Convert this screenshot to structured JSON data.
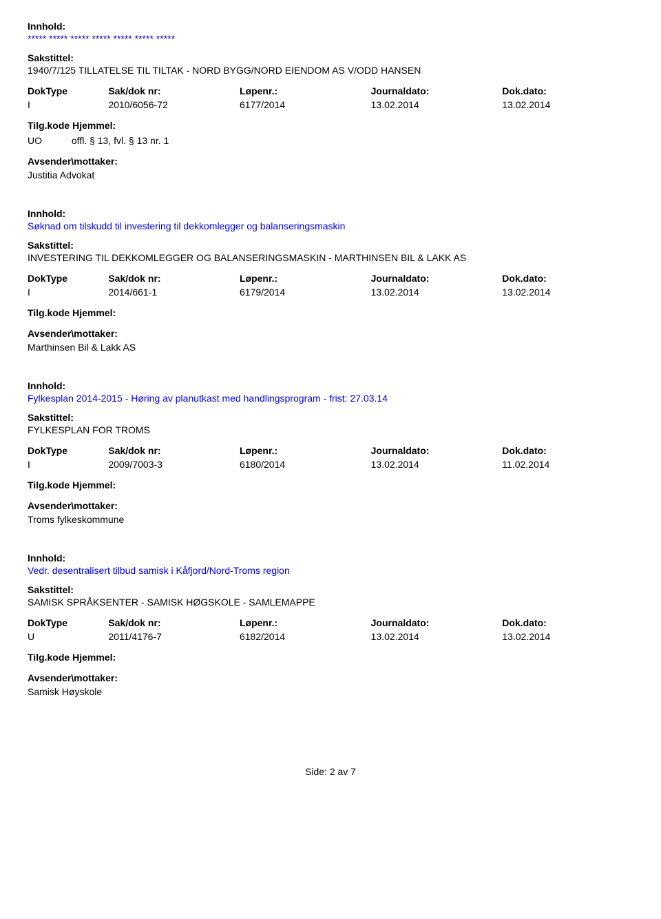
{
  "labels": {
    "innhold": "Innhold:",
    "sakstittel": "Sakstittel:",
    "doktype": "DokType",
    "saknr": "Sak/dok nr:",
    "lopenr": "Løpenr.:",
    "journaldato": "Journaldato:",
    "dokdato": "Dok.dato:",
    "tilgkode": "Tilg.kode",
    "hjemmel": "Hjemmel:",
    "avsender": "Avsender\\mottaker:"
  },
  "records": [
    {
      "innhold": "***** ***** ***** ***** ***** ***** *****",
      "sakstittel": "1940/7/125 TILLATELSE TIL TILTAK - NORD BYGG/NORD EIENDOM AS V/ODD HANSEN",
      "doktype": "I",
      "saknr": "2010/6056-72",
      "lopenr": "6177/2014",
      "journaldato": "13.02.2014",
      "dokdato": "13.02.2014",
      "tilgkode": "UO",
      "hjemmel": "offl. § 13, fvl. § 13 nr. 1",
      "avsender": "Justitia Advokat"
    },
    {
      "innhold": "Søknad om tilskudd til investering til dekkomlegger og balanseringsmaskin",
      "sakstittel": "INVESTERING TIL DEKKOMLEGGER OG BALANSERINGSMASKIN - MARTHINSEN BIL & LAKK AS",
      "doktype": "I",
      "saknr": "2014/661-1",
      "lopenr": "6179/2014",
      "journaldato": "13.02.2014",
      "dokdato": "13.02.2014",
      "tilgkode": "",
      "hjemmel": "",
      "avsender": "Marthinsen Bil & Lakk AS"
    },
    {
      "innhold": "Fylkesplan 2014-2015 - Høring av planutkast med handlingsprogram - frist: 27.03.14",
      "sakstittel": "FYLKESPLAN FOR TROMS",
      "doktype": "I",
      "saknr": "2009/7003-3",
      "lopenr": "6180/2014",
      "journaldato": "13.02.2014",
      "dokdato": "11.02.2014",
      "tilgkode": "",
      "hjemmel": "",
      "avsender": "Troms fylkeskommune"
    },
    {
      "innhold": "Vedr. desentralisert tilbud samisk i Kåfjord/Nord-Troms region",
      "sakstittel": "SAMISK SPRÅKSENTER - SAMISK HØGSKOLE - SAMLEMAPPE",
      "doktype": "U",
      "saknr": "2011/4176-7",
      "lopenr": "6182/2014",
      "journaldato": "13.02.2014",
      "dokdato": "13.02.2014",
      "tilgkode": "",
      "hjemmel": "",
      "avsender": "Samisk Høyskole"
    }
  ],
  "footer": "Side: 2 av 7",
  "colors": {
    "link": "#0000ee",
    "text": "#000000",
    "background": "#ffffff"
  },
  "typography": {
    "base_fontsize": 14,
    "font_family": "Verdana"
  }
}
